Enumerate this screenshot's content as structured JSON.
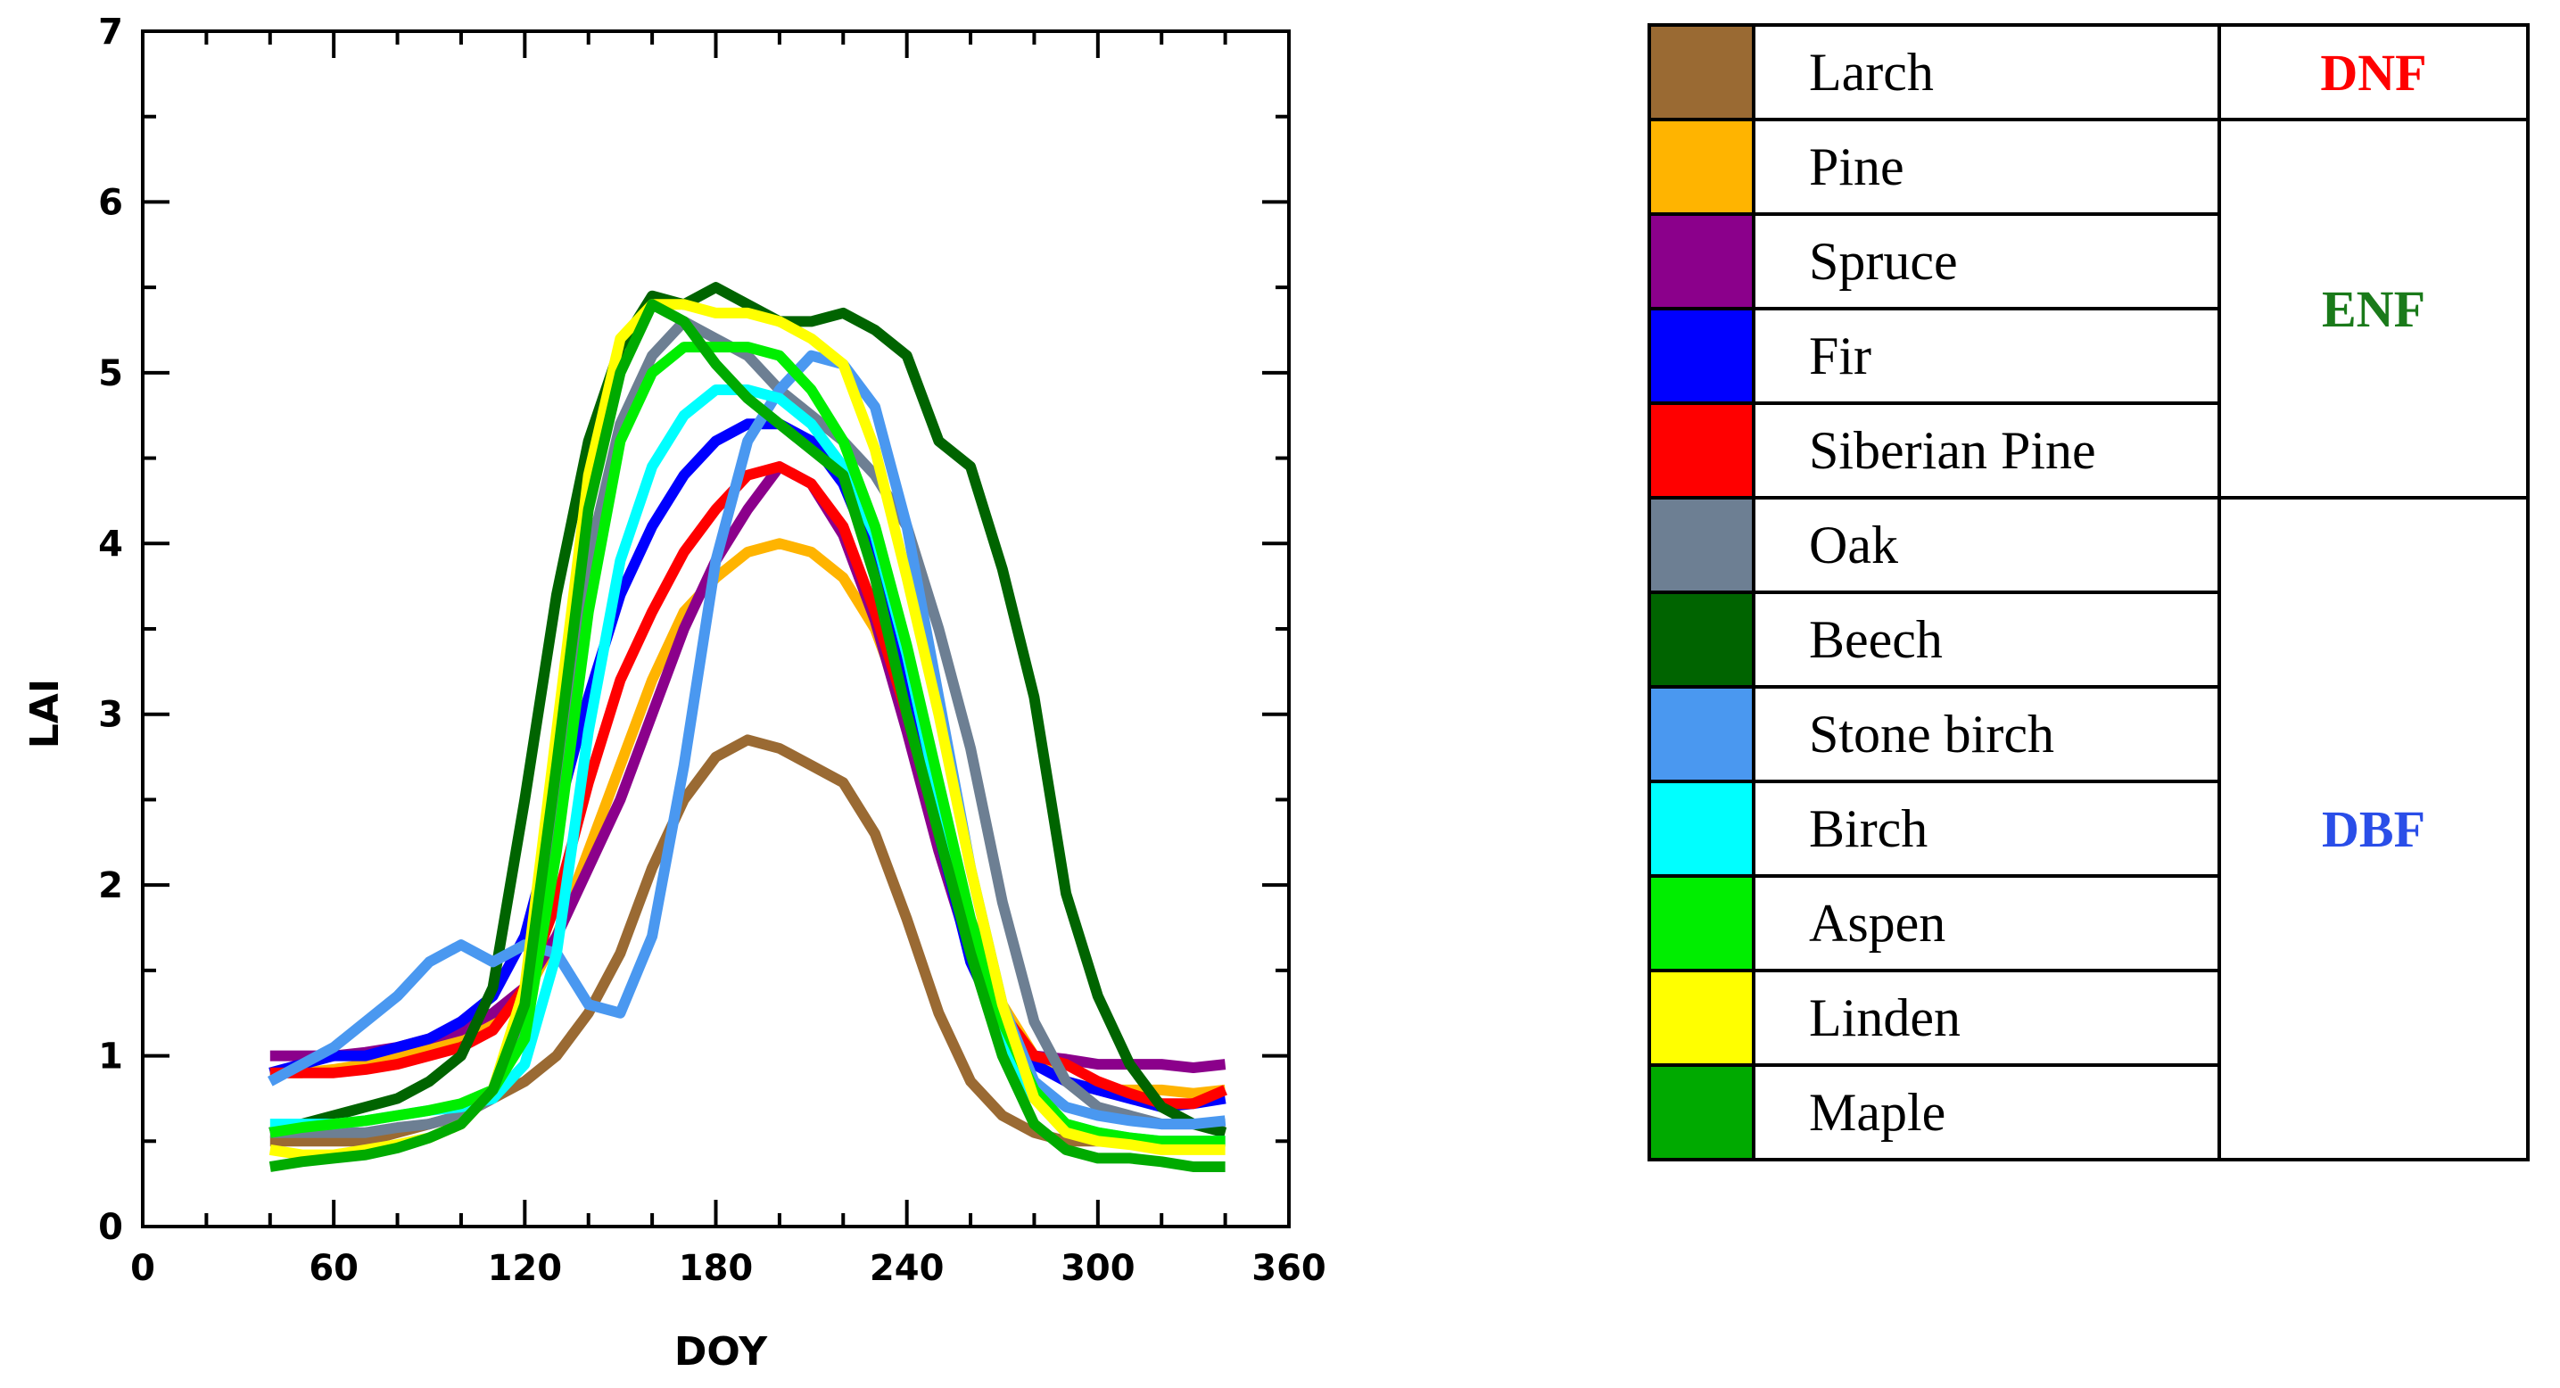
{
  "chart_data": {
    "type": "line",
    "title": "",
    "xlabel": "DOY",
    "ylabel": "LAI",
    "xlim": [
      0,
      360
    ],
    "ylim": [
      0,
      7
    ],
    "xticks": [
      0,
      60,
      120,
      180,
      240,
      300,
      360
    ],
    "yticks": [
      0,
      1,
      2,
      3,
      4,
      5,
      6,
      7
    ],
    "x": [
      40,
      50,
      60,
      70,
      80,
      90,
      100,
      110,
      120,
      130,
      140,
      150,
      160,
      170,
      180,
      190,
      200,
      210,
      220,
      230,
      240,
      250,
      260,
      270,
      280,
      290,
      300,
      310,
      320,
      330,
      340
    ],
    "series": [
      {
        "name": "Larch",
        "color": "#9a6a33",
        "group": "DNF",
        "values": [
          0.5,
          0.5,
          0.5,
          0.5,
          0.55,
          0.6,
          0.65,
          0.75,
          0.85,
          1.0,
          1.25,
          1.6,
          2.1,
          2.5,
          2.75,
          2.85,
          2.8,
          2.7,
          2.6,
          2.3,
          1.8,
          1.25,
          0.85,
          0.65,
          0.55,
          0.5,
          0.5,
          0.5,
          0.5,
          0.5,
          0.5
        ]
      },
      {
        "name": "Pine",
        "color": "#ffb400",
        "group": "ENF",
        "values": [
          0.9,
          0.9,
          0.92,
          0.95,
          1.0,
          1.05,
          1.1,
          1.2,
          1.35,
          1.7,
          2.2,
          2.7,
          3.2,
          3.6,
          3.8,
          3.95,
          4.0,
          3.95,
          3.8,
          3.5,
          3.0,
          2.4,
          1.8,
          1.3,
          1.0,
          0.85,
          0.8,
          0.8,
          0.8,
          0.78,
          0.8
        ]
      },
      {
        "name": "Spruce",
        "color": "#8b008b",
        "group": "ENF",
        "values": [
          1.0,
          1.0,
          1.0,
          1.02,
          1.05,
          1.1,
          1.15,
          1.25,
          1.4,
          1.7,
          2.1,
          2.5,
          3.0,
          3.5,
          3.9,
          4.2,
          4.45,
          4.35,
          4.05,
          3.55,
          2.9,
          2.2,
          1.6,
          1.2,
          1.0,
          0.98,
          0.95,
          0.95,
          0.95,
          0.93,
          0.95
        ]
      },
      {
        "name": "Fir",
        "color": "#0000ff",
        "group": "ENF",
        "values": [
          0.9,
          0.95,
          1.0,
          1.0,
          1.05,
          1.1,
          1.2,
          1.35,
          1.7,
          2.4,
          3.1,
          3.7,
          4.1,
          4.4,
          4.6,
          4.7,
          4.7,
          4.6,
          4.35,
          3.9,
          3.2,
          2.3,
          1.55,
          1.15,
          0.95,
          0.85,
          0.8,
          0.75,
          0.7,
          0.72,
          0.75
        ]
      },
      {
        "name": "Siberian Pine",
        "color": "#ff0000",
        "group": "ENF",
        "values": [
          0.9,
          0.9,
          0.9,
          0.92,
          0.95,
          1.0,
          1.05,
          1.15,
          1.4,
          1.9,
          2.6,
          3.2,
          3.6,
          3.95,
          4.2,
          4.4,
          4.45,
          4.35,
          4.1,
          3.6,
          3.0,
          2.3,
          1.7,
          1.25,
          1.0,
          0.95,
          0.85,
          0.78,
          0.72,
          0.72,
          0.8
        ]
      },
      {
        "name": "Oak",
        "color": "#6d7f93",
        "group": "DBF",
        "values": [
          0.55,
          0.55,
          0.55,
          0.55,
          0.58,
          0.6,
          0.65,
          0.75,
          1.2,
          2.5,
          3.9,
          4.7,
          5.1,
          5.3,
          5.2,
          5.1,
          4.9,
          4.75,
          4.6,
          4.4,
          4.1,
          3.5,
          2.8,
          1.9,
          1.2,
          0.85,
          0.7,
          0.65,
          0.6,
          0.6,
          0.6
        ]
      },
      {
        "name": "Beech",
        "color": "#006400",
        "group": "DBF",
        "values": [
          0.55,
          0.6,
          0.65,
          0.7,
          0.75,
          0.85,
          1.0,
          1.4,
          2.5,
          3.7,
          4.6,
          5.15,
          5.45,
          5.4,
          5.5,
          5.4,
          5.3,
          5.3,
          5.35,
          5.25,
          5.1,
          4.6,
          4.45,
          3.85,
          3.1,
          1.95,
          1.35,
          0.95,
          0.7,
          0.6,
          0.55
        ]
      },
      {
        "name": "Stone birch",
        "color": "#4a98f0",
        "group": "DBF",
        "values": [
          0.85,
          0.95,
          1.05,
          1.2,
          1.35,
          1.55,
          1.65,
          1.55,
          1.65,
          1.6,
          1.3,
          1.25,
          1.7,
          2.7,
          3.9,
          4.6,
          4.9,
          5.1,
          5.05,
          4.8,
          4.1,
          3.1,
          2.1,
          1.3,
          0.85,
          0.7,
          0.65,
          0.62,
          0.6,
          0.6,
          0.62
        ]
      },
      {
        "name": "Birch",
        "color": "#00ffff",
        "group": "DBF",
        "values": [
          0.6,
          0.6,
          0.6,
          0.62,
          0.65,
          0.68,
          0.7,
          0.75,
          0.95,
          1.6,
          2.9,
          3.9,
          4.45,
          4.75,
          4.9,
          4.9,
          4.85,
          4.7,
          4.45,
          4.05,
          3.35,
          2.5,
          1.7,
          1.1,
          0.75,
          0.6,
          0.55,
          0.52,
          0.5,
          0.5,
          0.5
        ]
      },
      {
        "name": "Aspen",
        "color": "#00ee00",
        "group": "DBF",
        "values": [
          0.55,
          0.58,
          0.6,
          0.62,
          0.65,
          0.68,
          0.72,
          0.8,
          1.1,
          2.2,
          3.6,
          4.6,
          5.0,
          5.15,
          5.15,
          5.15,
          5.1,
          4.9,
          4.6,
          4.1,
          3.4,
          2.6,
          1.8,
          1.2,
          0.8,
          0.6,
          0.55,
          0.52,
          0.5,
          0.5,
          0.5
        ]
      },
      {
        "name": "Linden",
        "color": "#ffff00",
        "group": "DBF",
        "values": [
          0.45,
          0.42,
          0.42,
          0.45,
          0.48,
          0.52,
          0.6,
          0.8,
          1.4,
          2.9,
          4.4,
          5.2,
          5.4,
          5.4,
          5.35,
          5.35,
          5.3,
          5.2,
          5.05,
          4.55,
          3.8,
          3.0,
          2.1,
          1.3,
          0.75,
          0.55,
          0.5,
          0.48,
          0.45,
          0.45,
          0.45
        ]
      },
      {
        "name": "Maple",
        "color": "#00aa00",
        "group": "DBF",
        "values": [
          0.35,
          0.38,
          0.4,
          0.42,
          0.46,
          0.52,
          0.6,
          0.8,
          1.3,
          2.7,
          4.2,
          5.0,
          5.4,
          5.3,
          5.05,
          4.85,
          4.7,
          4.55,
          4.4,
          3.8,
          3.0,
          2.3,
          1.6,
          1.0,
          0.6,
          0.45,
          0.4,
          0.4,
          0.38,
          0.35,
          0.35
        ]
      }
    ],
    "legend": {
      "placement": "right",
      "rows": [
        {
          "name": "Larch",
          "color": "#9a6a33"
        },
        {
          "name": "Pine",
          "color": "#ffb400"
        },
        {
          "name": "Spruce",
          "color": "#8b008b"
        },
        {
          "name": "Fir",
          "color": "#0000ff"
        },
        {
          "name": "Siberian Pine",
          "color": "#ff0000"
        },
        {
          "name": "Oak",
          "color": "#6d7f93"
        },
        {
          "name": "Beech",
          "color": "#006400"
        },
        {
          "name": "Stone birch",
          "color": "#4a98f0"
        },
        {
          "name": "Birch",
          "color": "#00ffff"
        },
        {
          "name": "Aspen",
          "color": "#00ee00"
        },
        {
          "name": "Linden",
          "color": "#ffff00"
        },
        {
          "name": "Maple",
          "color": "#00aa00"
        }
      ],
      "groups": [
        {
          "label": "DNF",
          "color": "#ff0000",
          "rows": 1
        },
        {
          "label": "ENF",
          "color": "#1a7a1a",
          "rows": 4
        },
        {
          "label": "DBF",
          "color": "#2a4ee8",
          "rows": 7
        }
      ]
    }
  }
}
